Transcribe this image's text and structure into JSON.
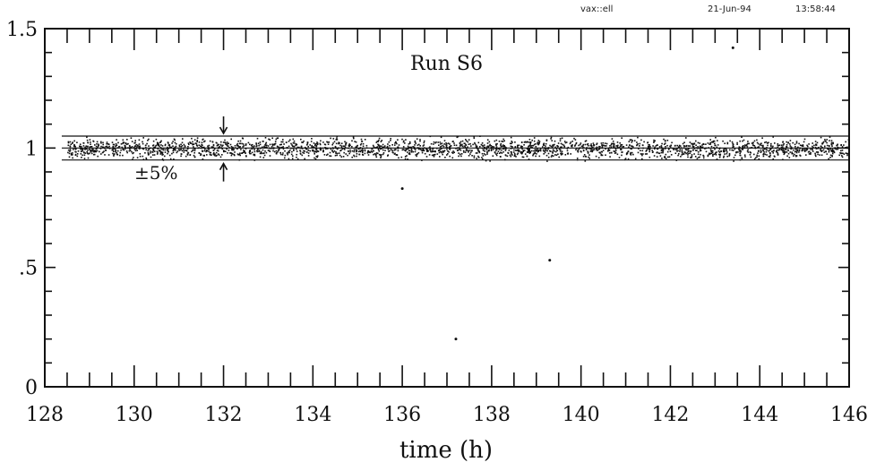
{
  "header": {
    "left": "vax::ell",
    "date": "21-Jun-94",
    "time": "13:58:44"
  },
  "chart_data": {
    "type": "scatter",
    "title": "Run S6",
    "xlabel": "time (h)",
    "ylabel": "",
    "xlim": [
      128,
      146
    ],
    "ylim": [
      0,
      1.5
    ],
    "x_ticks": [
      128,
      130,
      132,
      134,
      136,
      138,
      140,
      142,
      144,
      146
    ],
    "x_tick_labels": [
      "128",
      "130",
      "132",
      "134",
      "136",
      "138",
      "140",
      "142",
      "144",
      "146"
    ],
    "y_ticks": [
      0,
      0.5,
      1,
      1.5
    ],
    "y_tick_labels": [
      "0",
      ".5",
      "1",
      "1.5"
    ],
    "reference_lines": [
      {
        "y": 1.05,
        "style": "solid"
      },
      {
        "y": 1.0,
        "style": "solid"
      },
      {
        "y": 0.95,
        "style": "solid"
      }
    ],
    "band_annotation": {
      "text": "±5%",
      "x": 132,
      "upper": 1.05,
      "lower": 0.95
    },
    "scatter_band": {
      "x_start": 128.5,
      "x_end": 146,
      "center": 1.0,
      "spread": 0.05
    },
    "outliers": [
      {
        "x": 136.0,
        "y": 0.83
      },
      {
        "x": 139.3,
        "y": 0.53
      },
      {
        "x": 137.2,
        "y": 0.2
      },
      {
        "x": 143.4,
        "y": 1.42
      }
    ],
    "grid": false
  }
}
